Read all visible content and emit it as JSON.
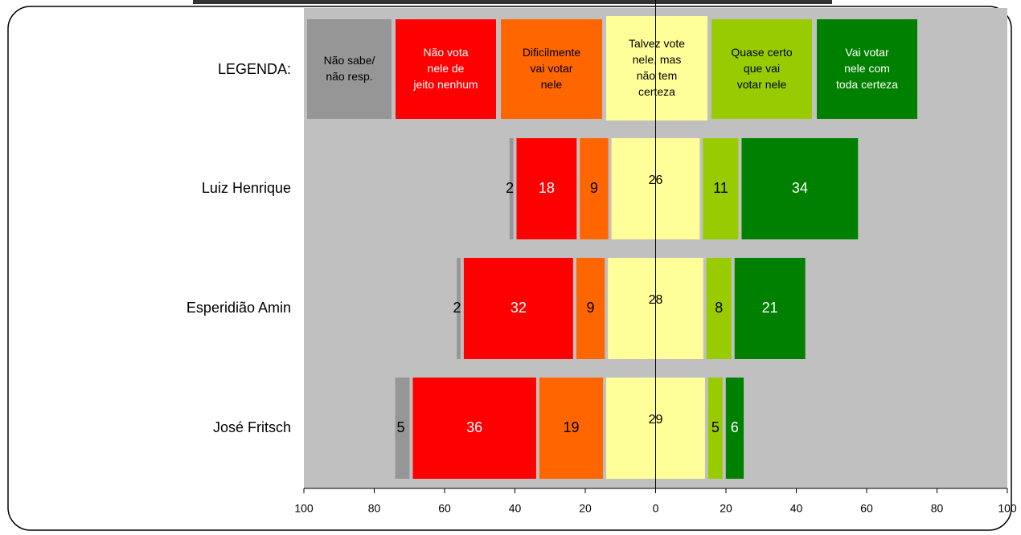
{
  "chart_data": {
    "type": "diverging_bar",
    "legend_title": "LEGENDA:",
    "categories": [
      "Luiz Henrique",
      "Esperidião Amin",
      "José Fritsch"
    ],
    "series": [
      {
        "name": "Não sabe/ não resp.",
        "color": "#969696",
        "label_color": "#000000",
        "values": [
          2,
          2,
          5
        ]
      },
      {
        "name": "Não vota nele de jeito nenhum",
        "color": "#ff0000",
        "label_color": "#ffffff",
        "values": [
          18,
          32,
          36
        ]
      },
      {
        "name": "Dificilmente vai votar nele",
        "color": "#ff6600",
        "label_color": "#000000",
        "values": [
          9,
          9,
          19
        ]
      },
      {
        "name": "Talvez vote nele,  mas não tem certeza",
        "color": "#ffff99",
        "label_color": "#000000",
        "values": [
          26,
          28,
          29
        ]
      },
      {
        "name": "Quase certo que vai votar nele",
        "color": "#99cc00",
        "label_color": "#000000",
        "values": [
          11,
          8,
          5
        ]
      },
      {
        "name": "Vai votar nele com toda certeza",
        "color": "#008000",
        "label_color": "#ffffff",
        "values": [
          34,
          21,
          6
        ]
      }
    ],
    "xlim": [
      -100,
      100
    ],
    "xticks": [
      {
        "value": -100,
        "label": "100"
      },
      {
        "value": -80,
        "label": "80"
      },
      {
        "value": -60,
        "label": "60"
      },
      {
        "value": -40,
        "label": "40"
      },
      {
        "value": -20,
        "label": "20"
      },
      0,
      20,
      40,
      60,
      80,
      100
    ],
    "background": "#c0c0c0"
  }
}
